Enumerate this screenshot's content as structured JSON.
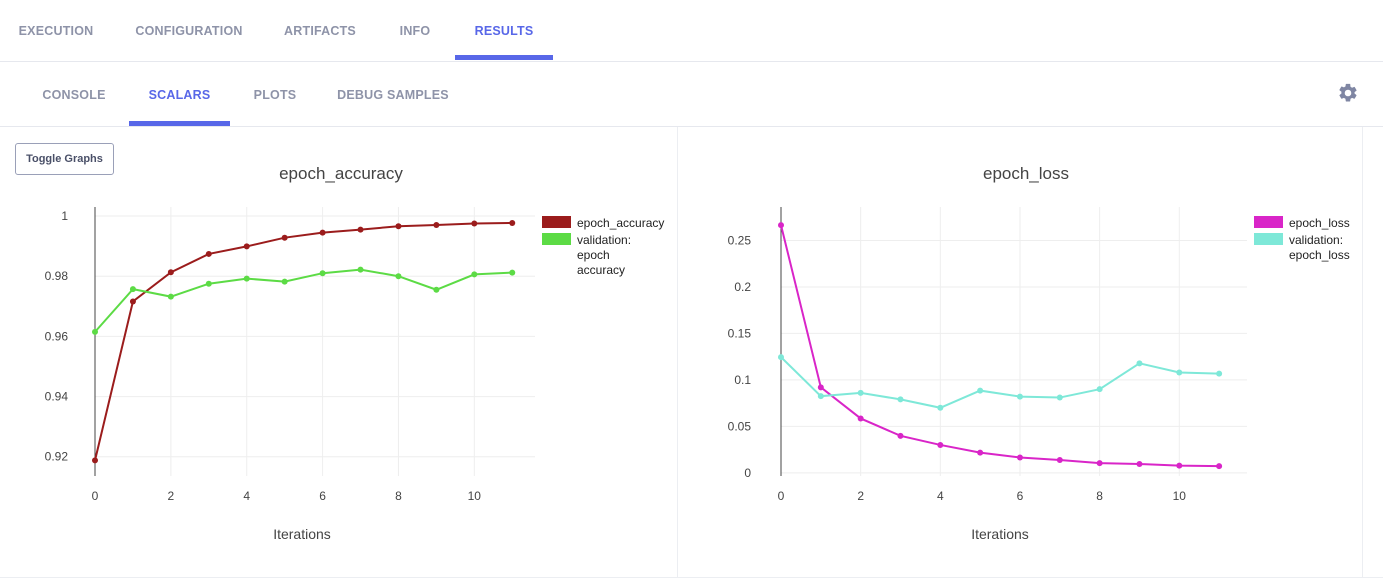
{
  "top_tabs": [
    {
      "label": "EXECUTION",
      "active": false
    },
    {
      "label": "CONFIGURATION",
      "active": false
    },
    {
      "label": "ARTIFACTS",
      "active": false
    },
    {
      "label": "INFO",
      "active": false
    },
    {
      "label": "RESULTS",
      "active": true
    }
  ],
  "sub_tabs": [
    {
      "label": "CONSOLE",
      "active": false
    },
    {
      "label": "SCALARS",
      "active": true
    },
    {
      "label": "PLOTS",
      "active": false
    },
    {
      "label": "DEBUG SAMPLES",
      "active": false
    }
  ],
  "toolbar": {
    "toggle_graphs_label": "Toggle Graphs",
    "settings_icon": "gear-icon"
  },
  "colors": {
    "accent": "#5867e8",
    "tab_text": "#8e93a8"
  },
  "chart_data": [
    {
      "type": "line",
      "title": "epoch_accuracy",
      "xlabel": "Iterations",
      "ylabel": "",
      "x": [
        0,
        1,
        2,
        3,
        4,
        5,
        6,
        7,
        8,
        9,
        10,
        11
      ],
      "xlim": [
        0,
        11.6
      ],
      "ylim": [
        0.9136,
        1.003
      ],
      "xticks": [
        0,
        2,
        4,
        6,
        8,
        10
      ],
      "yticks": [
        0.92,
        0.94,
        0.96,
        0.98,
        1
      ],
      "ytick_labels": [
        "0.92",
        "0.94",
        "0.96",
        "0.98",
        "1"
      ],
      "grid": true,
      "legend_position": "right",
      "series": [
        {
          "name": "epoch_accuracy",
          "legend_lines": [
            "epoch_accuracy"
          ],
          "color": "#9b1c1c",
          "values": [
            0.9188,
            0.9716,
            0.9813,
            0.9874,
            0.9899,
            0.9928,
            0.9945,
            0.9955,
            0.9966,
            0.997,
            0.9975,
            0.9977
          ]
        },
        {
          "name": "validation: epoch accuracy",
          "legend_lines": [
            "validation:",
            "epoch",
            "accuracy"
          ],
          "color": "#5cdb45",
          "values": [
            0.9615,
            0.9757,
            0.9732,
            0.9775,
            0.9792,
            0.9782,
            0.981,
            0.9822,
            0.98,
            0.9755,
            0.9806,
            0.9812
          ]
        }
      ]
    },
    {
      "type": "line",
      "title": "epoch_loss",
      "xlabel": "Iterations",
      "ylabel": "",
      "x": [
        0,
        1,
        2,
        3,
        4,
        5,
        6,
        7,
        8,
        9,
        10,
        11
      ],
      "xlim": [
        0,
        11.7
      ],
      "ylim": [
        -0.0034,
        0.286
      ],
      "xticks": [
        0,
        2,
        4,
        6,
        8,
        10
      ],
      "yticks": [
        0,
        0.05,
        0.1,
        0.15,
        0.2,
        0.25
      ],
      "ytick_labels": [
        "0",
        "0.05",
        "0.1",
        "0.15",
        "0.2",
        "0.25"
      ],
      "grid": true,
      "legend_position": "right",
      "series": [
        {
          "name": "epoch_loss",
          "legend_lines": [
            "epoch_loss"
          ],
          "color": "#d925c8",
          "values": [
            0.2665,
            0.092,
            0.0585,
            0.0398,
            0.03,
            0.0218,
            0.0165,
            0.0138,
            0.0105,
            0.0095,
            0.0078,
            0.0072
          ]
        },
        {
          "name": "validation: epoch_loss",
          "legend_lines": [
            "validation:",
            "epoch_loss"
          ],
          "color": "#7ee8d8",
          "values": [
            0.1245,
            0.0825,
            0.086,
            0.079,
            0.07,
            0.0885,
            0.082,
            0.081,
            0.09,
            0.1178,
            0.108,
            0.1068
          ]
        }
      ]
    }
  ]
}
